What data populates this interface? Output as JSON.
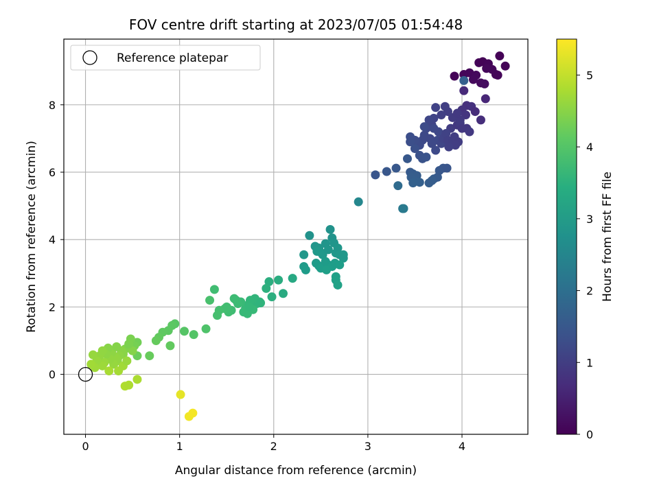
{
  "chart_data": {
    "type": "scatter",
    "title": "FOV centre drift starting at 2023/07/05 01:54:48",
    "xlabel": "Angular distance from reference (arcmin)",
    "ylabel": "Rotation from reference (arcmin)",
    "xlim": [
      -0.23,
      4.7
    ],
    "ylim": [
      -1.78,
      9.95
    ],
    "xticks": [
      "0",
      "1",
      "2",
      "3",
      "4"
    ],
    "yticks": [
      "0",
      "2",
      "4",
      "6",
      "8"
    ],
    "grid": true,
    "legend": {
      "position": "top-left",
      "entries": [
        {
          "label": "Reference platepar",
          "marker": "hollow-circle"
        }
      ]
    },
    "reference_point": {
      "x": 0,
      "y": 0
    },
    "colorbar": {
      "label": "Hours from first FF file",
      "colormap": "viridis",
      "range": [
        0,
        5.5
      ],
      "ticks": [
        "0",
        "1",
        "2",
        "3",
        "4",
        "5"
      ]
    },
    "points": [
      [
        3.92,
        8.85,
        0.05
      ],
      [
        4.02,
        8.9,
        0.08
      ],
      [
        4.08,
        8.95,
        0.1
      ],
      [
        4.15,
        8.88,
        0.12
      ],
      [
        4.18,
        9.25,
        0.06
      ],
      [
        4.22,
        9.28,
        0.04
      ],
      [
        4.28,
        9.22,
        0.07
      ],
      [
        4.32,
        9.05,
        0.1
      ],
      [
        4.36,
        8.9,
        0.09
      ],
      [
        4.4,
        9.45,
        0.03
      ],
      [
        4.46,
        9.15,
        0.05
      ],
      [
        4.2,
        8.65,
        0.15
      ],
      [
        4.24,
        8.62,
        0.18
      ],
      [
        4.12,
        8.75,
        0.14
      ],
      [
        4.26,
        9.08,
        0.11
      ],
      [
        4.38,
        8.88,
        0.08
      ],
      [
        4.02,
        8.72,
        1.65
      ],
      [
        4.02,
        8.42,
        0.65
      ],
      [
        4.05,
        7.98,
        0.75
      ],
      [
        4.0,
        7.85,
        0.8
      ],
      [
        4.1,
        7.95,
        0.78
      ],
      [
        4.14,
        7.8,
        0.7
      ],
      [
        4.2,
        7.55,
        0.72
      ],
      [
        4.25,
        8.18,
        0.6
      ],
      [
        4.04,
        7.7,
        0.85
      ],
      [
        3.98,
        7.55,
        0.92
      ],
      [
        3.9,
        7.62,
        0.95
      ],
      [
        3.88,
        7.3,
        0.98
      ],
      [
        3.95,
        7.4,
        0.9
      ],
      [
        4.05,
        7.3,
        0.88
      ],
      [
        4.08,
        7.2,
        0.92
      ],
      [
        3.85,
        7.8,
        1.0
      ],
      [
        3.82,
        7.95,
        1.02
      ],
      [
        3.78,
        7.7,
        1.05
      ],
      [
        3.72,
        7.92,
        1.08
      ],
      [
        3.7,
        7.6,
        1.1
      ],
      [
        3.68,
        7.4,
        1.12
      ],
      [
        3.65,
        7.55,
        1.15
      ],
      [
        3.62,
        7.3,
        1.18
      ],
      [
        3.6,
        7.1,
        1.2
      ],
      [
        3.58,
        6.95,
        1.22
      ],
      [
        3.55,
        6.8,
        1.25
      ],
      [
        3.5,
        6.95,
        1.28
      ],
      [
        3.45,
        7.05,
        1.3
      ],
      [
        3.45,
        6.9,
        1.32
      ],
      [
        3.5,
        6.7,
        1.35
      ],
      [
        3.55,
        6.5,
        1.38
      ],
      [
        3.58,
        6.4,
        1.4
      ],
      [
        3.62,
        6.45,
        1.42
      ],
      [
        3.6,
        7.35,
        1.25
      ],
      [
        3.7,
        7.3,
        1.2
      ],
      [
        3.75,
        7.2,
        1.18
      ],
      [
        3.74,
        6.95,
        1.2
      ],
      [
        3.72,
        6.65,
        1.22
      ],
      [
        3.78,
        6.85,
        1.15
      ],
      [
        3.8,
        7.0,
        1.1
      ],
      [
        3.83,
        7.15,
        1.08
      ],
      [
        3.85,
        6.95,
        1.05
      ],
      [
        3.9,
        6.9,
        1.02
      ],
      [
        3.92,
        7.05,
        1.0
      ],
      [
        3.96,
        6.9,
        0.98
      ],
      [
        3.93,
        6.8,
        1.0
      ],
      [
        3.86,
        6.75,
        1.05
      ],
      [
        3.98,
        7.45,
        0.95
      ],
      [
        4.0,
        7.3,
        0.9
      ],
      [
        3.95,
        7.75,
        0.92
      ],
      [
        3.6,
        7.05,
        1.2
      ],
      [
        3.66,
        7.0,
        1.18
      ],
      [
        3.68,
        6.85,
        1.2
      ],
      [
        3.08,
        5.92,
        1.45
      ],
      [
        3.2,
        6.02,
        1.48
      ],
      [
        3.3,
        6.12,
        1.5
      ],
      [
        3.42,
        6.4,
        1.5
      ],
      [
        3.45,
        6.0,
        1.55
      ],
      [
        3.48,
        5.95,
        1.58
      ],
      [
        3.52,
        5.9,
        1.6
      ],
      [
        3.46,
        5.85,
        1.62
      ],
      [
        3.5,
        5.75,
        1.65
      ],
      [
        3.55,
        5.7,
        1.68
      ],
      [
        3.48,
        5.68,
        1.7
      ],
      [
        3.65,
        5.68,
        1.62
      ],
      [
        3.7,
        5.8,
        1.58
      ],
      [
        3.74,
        5.85,
        1.55
      ],
      [
        3.76,
        6.05,
        1.5
      ],
      [
        3.8,
        6.12,
        1.48
      ],
      [
        3.84,
        6.12,
        1.45
      ],
      [
        3.68,
        5.75,
        1.6
      ],
      [
        3.32,
        5.6,
        1.9
      ],
      [
        3.37,
        4.92,
        2.2
      ],
      [
        3.38,
        4.92,
        2.25
      ],
      [
        2.9,
        5.12,
        2.55
      ],
      [
        2.38,
        4.12,
        2.8
      ],
      [
        2.44,
        3.8,
        2.85
      ],
      [
        2.48,
        3.75,
        2.88
      ],
      [
        2.5,
        3.62,
        2.9
      ],
      [
        2.52,
        3.55,
        2.92
      ],
      [
        2.55,
        3.88,
        2.85
      ],
      [
        2.58,
        3.7,
        2.88
      ],
      [
        2.6,
        4.3,
        2.8
      ],
      [
        2.62,
        4.05,
        2.82
      ],
      [
        2.64,
        3.9,
        2.86
      ],
      [
        2.66,
        3.6,
        2.9
      ],
      [
        2.68,
        3.75,
        2.88
      ],
      [
        2.7,
        3.55,
        2.92
      ],
      [
        2.74,
        3.45,
        2.95
      ],
      [
        2.74,
        3.55,
        2.93
      ],
      [
        2.32,
        3.55,
        2.9
      ],
      [
        2.32,
        3.2,
        3.0
      ],
      [
        2.34,
        3.1,
        3.02
      ],
      [
        2.45,
        3.3,
        3.0
      ],
      [
        2.48,
        3.22,
        3.02
      ],
      [
        2.5,
        3.15,
        3.05
      ],
      [
        2.55,
        3.35,
        3.0
      ],
      [
        2.58,
        3.25,
        3.02
      ],
      [
        2.62,
        3.2,
        3.05
      ],
      [
        2.65,
        3.3,
        3.03
      ],
      [
        2.7,
        3.25,
        3.05
      ],
      [
        2.66,
        2.9,
        3.1
      ],
      [
        2.66,
        2.8,
        3.12
      ],
      [
        2.68,
        2.65,
        3.15
      ],
      [
        2.46,
        3.65,
        2.95
      ],
      [
        2.56,
        3.1,
        3.08
      ],
      [
        2.2,
        2.85,
        3.3
      ],
      [
        2.1,
        2.4,
        3.35
      ],
      [
        2.05,
        2.8,
        3.4
      ],
      [
        1.95,
        2.75,
        3.42
      ],
      [
        1.98,
        2.3,
        3.45
      ],
      [
        1.92,
        2.55,
        3.48
      ],
      [
        1.85,
        2.15,
        3.55
      ],
      [
        1.82,
        2.1,
        3.58
      ],
      [
        1.8,
        2.25,
        3.6
      ],
      [
        1.75,
        2.2,
        3.62
      ],
      [
        1.72,
        2.05,
        3.65
      ],
      [
        1.7,
        1.95,
        3.68
      ],
      [
        1.68,
        1.85,
        3.7
      ],
      [
        1.72,
        1.8,
        3.7
      ],
      [
        1.65,
        2.15,
        3.72
      ],
      [
        1.62,
        2.1,
        3.74
      ],
      [
        1.6,
        2.2,
        3.75
      ],
      [
        1.58,
        2.25,
        3.76
      ],
      [
        1.55,
        1.9,
        3.78
      ],
      [
        1.52,
        1.85,
        3.8
      ],
      [
        1.5,
        2.0,
        3.82
      ],
      [
        1.48,
        1.95,
        3.82
      ],
      [
        1.42,
        1.9,
        3.85
      ],
      [
        1.4,
        1.75,
        3.86
      ],
      [
        1.37,
        2.52,
        3.8
      ],
      [
        1.32,
        2.2,
        3.88
      ],
      [
        1.28,
        1.35,
        3.95
      ],
      [
        1.15,
        1.18,
        4.0
      ],
      [
        1.05,
        1.28,
        4.02
      ],
      [
        0.95,
        1.5,
        4.05
      ],
      [
        0.92,
        1.45,
        4.08
      ],
      [
        0.88,
        1.3,
        4.1
      ],
      [
        0.82,
        1.25,
        4.12
      ],
      [
        0.78,
        1.1,
        4.15
      ],
      [
        0.75,
        1.0,
        4.18
      ],
      [
        0.9,
        0.85,
        4.15
      ],
      [
        0.68,
        0.55,
        4.2
      ],
      [
        0.55,
        0.55,
        4.25
      ],
      [
        1.78,
        1.92,
        3.7
      ],
      [
        1.74,
        2.0,
        3.66
      ],
      [
        1.86,
        2.12,
        3.56
      ],
      [
        0.55,
        0.95,
        4.3
      ],
      [
        0.52,
        0.85,
        4.35
      ],
      [
        0.48,
        1.05,
        4.38
      ],
      [
        0.45,
        0.8,
        4.42
      ],
      [
        0.42,
        0.75,
        4.45
      ],
      [
        0.4,
        0.6,
        4.5
      ],
      [
        0.38,
        0.7,
        4.52
      ],
      [
        0.36,
        0.55,
        4.55
      ],
      [
        0.34,
        0.4,
        4.58
      ],
      [
        0.32,
        0.5,
        4.6
      ],
      [
        0.3,
        0.3,
        4.62
      ],
      [
        0.28,
        0.65,
        4.55
      ],
      [
        0.26,
        0.45,
        4.6
      ],
      [
        0.24,
        0.78,
        4.5
      ],
      [
        0.22,
        0.6,
        4.55
      ],
      [
        0.2,
        0.35,
        4.65
      ],
      [
        0.18,
        0.25,
        4.68
      ],
      [
        0.15,
        0.55,
        4.6
      ],
      [
        0.12,
        0.4,
        4.65
      ],
      [
        0.1,
        0.2,
        4.7
      ],
      [
        0.08,
        0.58,
        4.62
      ],
      [
        0.06,
        0.3,
        4.72
      ],
      [
        0.35,
        0.1,
        4.75
      ],
      [
        0.4,
        0.25,
        4.72
      ],
      [
        0.25,
        0.1,
        4.78
      ],
      [
        0.44,
        0.4,
        4.65
      ],
      [
        0.42,
        -0.35,
        4.85
      ],
      [
        0.46,
        -0.32,
        4.82
      ],
      [
        0.55,
        -0.15,
        4.8
      ],
      [
        0.5,
        0.7,
        4.48
      ],
      [
        0.46,
        0.9,
        4.4
      ],
      [
        0.33,
        0.82,
        4.48
      ],
      [
        0.18,
        0.7,
        4.58
      ],
      [
        1.01,
        -0.6,
        5.3
      ],
      [
        1.1,
        -1.25,
        5.4
      ],
      [
        1.14,
        -1.15,
        5.42
      ]
    ]
  }
}
